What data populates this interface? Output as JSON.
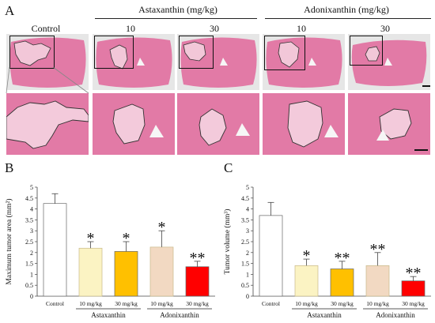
{
  "panels": {
    "a": "A",
    "b": "B",
    "c": "C"
  },
  "header": {
    "control": "Control",
    "groups": [
      {
        "name": "Astaxanthin (mg/kg)",
        "doses": [
          "10",
          "30"
        ]
      },
      {
        "name": "Adonixanthin (mg/kg)",
        "doses": [
          "10",
          "30"
        ]
      }
    ]
  },
  "colors": {
    "control": "#ffffff",
    "asta10": "#fbf3c3",
    "asta30": "#ffc000",
    "adoni10": "#f2d9c2",
    "adoni30": "#ff0000",
    "tissue": "#e27aa6",
    "tissue_dark": "#d2689a"
  },
  "chart_data": [
    {
      "type": "bar",
      "ylabel": "Maximum tumor area (mm²)",
      "ylim": [
        0,
        5
      ],
      "yticks": [
        "0",
        "0.5",
        "1",
        "1.5",
        "2",
        "2.5",
        "3",
        "3.5",
        "4",
        "4.5",
        "5"
      ],
      "categories": [
        "Control",
        "10 mg/kg",
        "30 mg/kg",
        "10 mg/kg",
        "30 mg/kg"
      ],
      "values": [
        4.25,
        2.2,
        2.05,
        2.25,
        1.35
      ],
      "errors": [
        0.45,
        0.3,
        0.45,
        0.75,
        0.25
      ],
      "markers": [
        "",
        "*",
        "*",
        "*",
        "**"
      ],
      "groups": [
        {
          "label": "Astaxanthin",
          "from": 1,
          "to": 2
        },
        {
          "label": "Adonixanthin",
          "from": 3,
          "to": 4
        }
      ]
    },
    {
      "type": "bar",
      "ylabel": "Tumor volume (mm³)",
      "ylim": [
        0,
        5
      ],
      "yticks": [
        "0",
        "0.5",
        "1",
        "1.5",
        "2",
        "2.5",
        "3",
        "3.5",
        "4",
        "4.5",
        "5"
      ],
      "categories": [
        "Control",
        "10 mg/kg",
        "30 mg/kg",
        "10 mg/kg",
        "30 mg/kg"
      ],
      "values": [
        3.7,
        1.4,
        1.25,
        1.4,
        0.7
      ],
      "errors": [
        0.6,
        0.3,
        0.35,
        0.6,
        0.2
      ],
      "markers": [
        "",
        "*",
        "**",
        "**",
        "**"
      ],
      "groups": [
        {
          "label": "Astaxanthin",
          "from": 1,
          "to": 2
        },
        {
          "label": "Adonixanthin",
          "from": 3,
          "to": 4
        }
      ]
    }
  ]
}
